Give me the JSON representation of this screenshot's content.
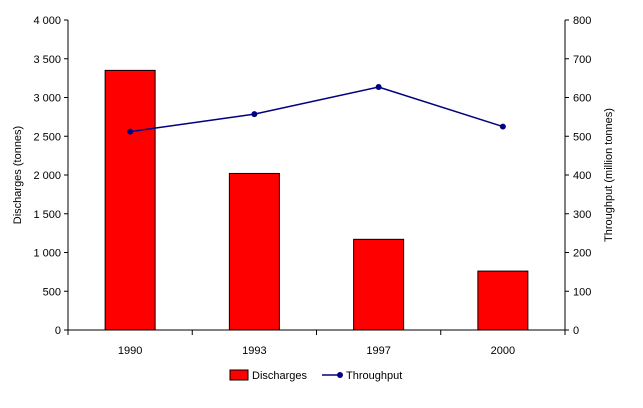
{
  "chart_data": {
    "type": "bar",
    "categories": [
      "1990",
      "1993",
      "1997",
      "2000"
    ],
    "series": [
      {
        "name": "Discharges",
        "type": "bar",
        "axis": "left",
        "color": "#ff0000",
        "values": [
          3350,
          2020,
          1170,
          760
        ]
      },
      {
        "name": "Throughput",
        "type": "line",
        "axis": "right",
        "color": "#000080",
        "values": [
          512,
          557,
          627,
          525
        ]
      }
    ],
    "ylabel": "Discharges (tonnes)",
    "y2label": "Throughput (million tonnes)",
    "ylim": [
      0,
      4000
    ],
    "y2lim": [
      0,
      800
    ],
    "yticks": [
      "0",
      "500",
      "1 000",
      "1 500",
      "2 000",
      "2 500",
      "3 000",
      "3 500",
      "4 000"
    ],
    "y2ticks": [
      "0",
      "100",
      "200",
      "300",
      "400",
      "500",
      "600",
      "700",
      "800"
    ],
    "grid": false,
    "legend_position": "bottom-center"
  }
}
